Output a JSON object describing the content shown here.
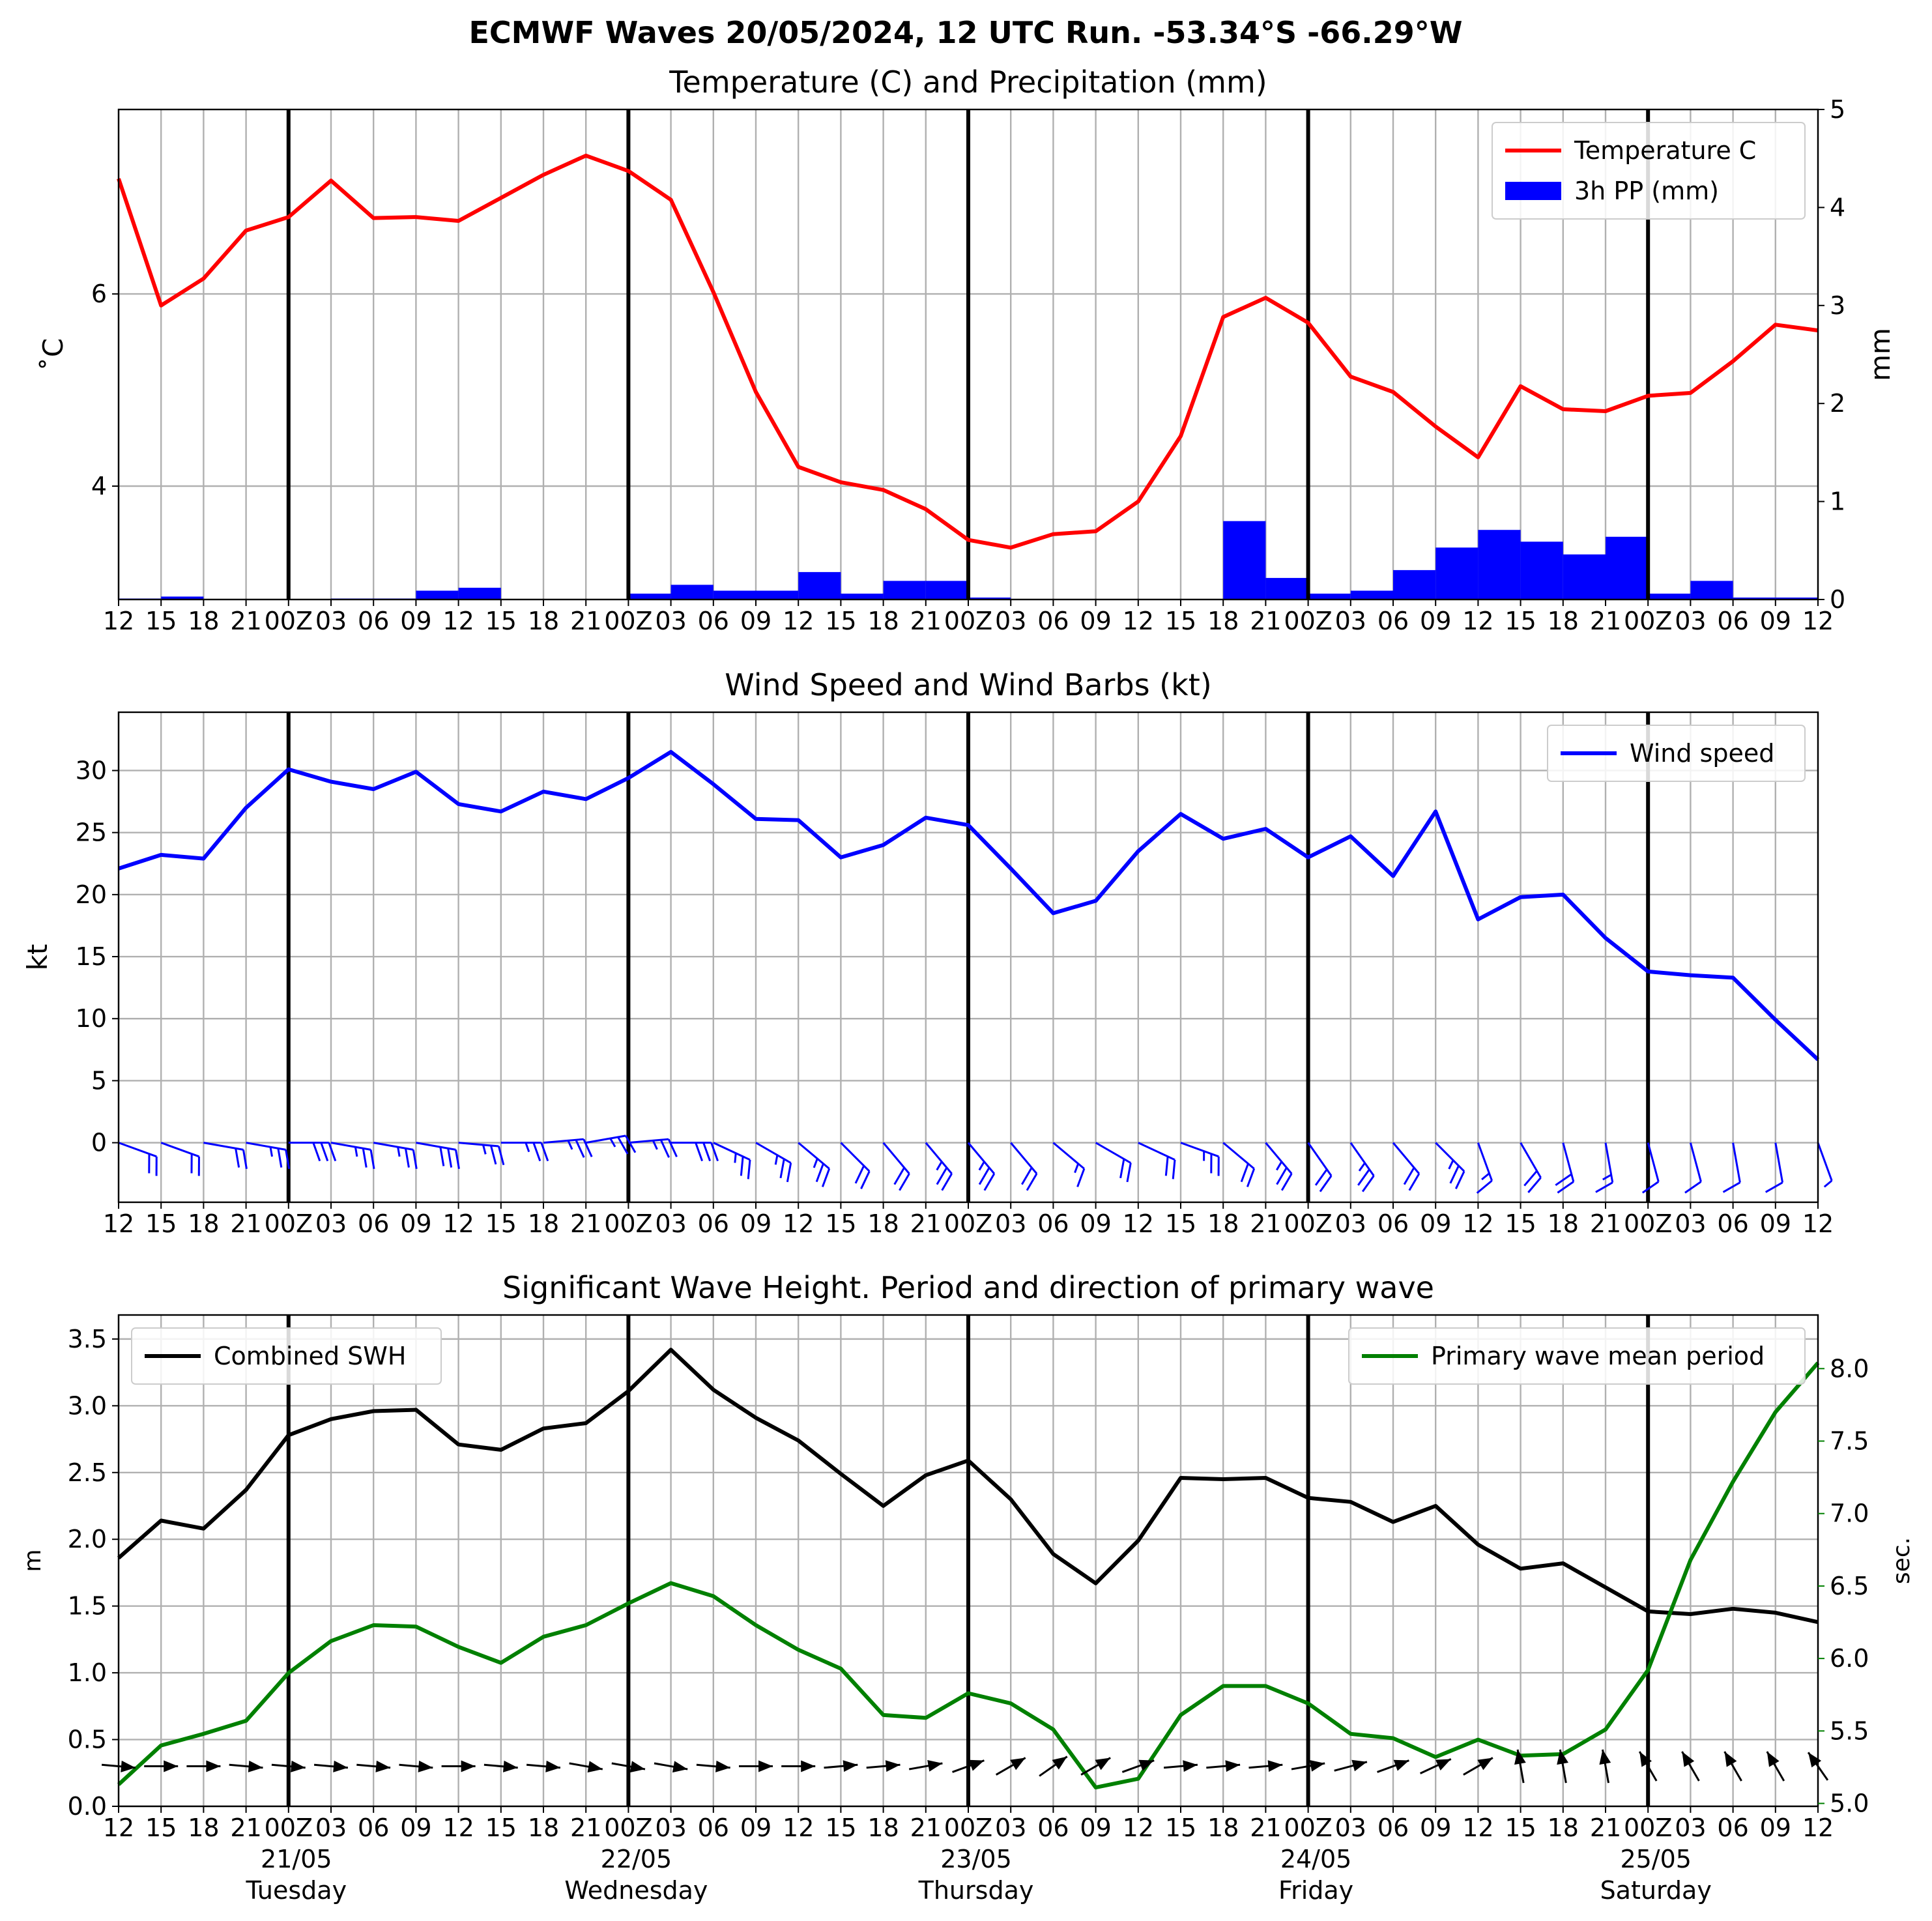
{
  "main_title": "ECMWF Waves 20/05/2024, 12 UTC Run. -53.34°S -66.29°W",
  "chart_data": [
    {
      "type": "line",
      "title": "Temperature (C) and Precipitation (mm)",
      "ylabel": "$^\\circ$C",
      "ylabel_display": "˚C",
      "y2label": "mm",
      "ylim": [
        2.82,
        7.92
      ],
      "y2lim": [
        0,
        5
      ],
      "yticks": [
        4,
        6
      ],
      "y2ticks": [
        0,
        1,
        2,
        3,
        4,
        5
      ],
      "xlim": [
        0,
        40
      ],
      "day_boundaries": [
        4,
        12,
        20,
        28,
        36
      ],
      "xtick_labels": [
        "12",
        "15",
        "18",
        "21",
        "00Z",
        "03",
        "06",
        "09",
        "12",
        "15",
        "18",
        "21",
        "00Z",
        "03",
        "06",
        "09",
        "12",
        "15",
        "18",
        "21",
        "00Z",
        "03",
        "06",
        "09",
        "12",
        "15",
        "18",
        "21",
        "00Z",
        "03",
        "06",
        "09",
        "12",
        "15",
        "18",
        "21",
        "00Z",
        "03",
        "06",
        "09",
        "12"
      ],
      "legend_position": "top-right",
      "grid": true,
      "series": [
        {
          "name": "Temperature C",
          "axis": "left",
          "color": "#ff0000",
          "x": [
            0,
            1,
            2,
            3,
            4,
            5,
            6,
            7,
            8,
            9,
            10,
            11,
            12,
            13,
            14,
            15,
            16,
            17,
            18,
            19,
            20,
            21,
            22,
            23,
            24,
            25,
            26,
            27,
            28,
            29,
            30,
            31,
            32,
            33,
            34,
            35,
            36,
            37,
            38,
            39,
            40
          ],
          "values": [
            7.2,
            5.88,
            6.16,
            6.66,
            6.8,
            7.18,
            6.79,
            6.8,
            6.76,
            7.0,
            7.24,
            7.44,
            7.28,
            6.98,
            6.02,
            4.98,
            4.2,
            4.04,
            3.96,
            3.76,
            3.44,
            3.36,
            3.5,
            3.53,
            3.84,
            4.52,
            5.76,
            5.96,
            5.7,
            5.14,
            4.98,
            4.62,
            4.3,
            5.04,
            4.8,
            4.78,
            4.94,
            4.97,
            5.3,
            5.68,
            5.62
          ]
        },
        {
          "name": "3h PP (mm)",
          "axis": "right",
          "type": "bar",
          "color": "#0000ff",
          "x": [
            0,
            1,
            2,
            3,
            4,
            5,
            6,
            7,
            8,
            9,
            10,
            11,
            12,
            13,
            14,
            15,
            16,
            17,
            18,
            19,
            20,
            21,
            22,
            23,
            24,
            25,
            26,
            27,
            28,
            29,
            30,
            31,
            32,
            33,
            34,
            35,
            36,
            37,
            38,
            39
          ],
          "values": [
            0.01,
            0.03,
            0,
            0,
            0,
            0.01,
            0.01,
            0.09,
            0.12,
            0,
            0,
            0,
            0.06,
            0.15,
            0.09,
            0.09,
            0.28,
            0.06,
            0.19,
            0.19,
            0.02,
            0,
            0,
            0,
            0,
            0,
            0.8,
            0.22,
            0.06,
            0.09,
            0.3,
            0.53,
            0.71,
            0.59,
            0.46,
            0.64,
            0.06,
            0.19,
            0.02,
            0.02
          ]
        }
      ]
    },
    {
      "type": "line",
      "title": "Wind Speed and Wind Barbs (kt)",
      "ylabel": "kt",
      "ylim": [
        -4.8,
        34.7
      ],
      "yticks": [
        0,
        5,
        10,
        15,
        20,
        25,
        30
      ],
      "xlim": [
        0,
        40
      ],
      "day_boundaries": [
        4,
        12,
        20,
        28,
        36
      ],
      "xtick_labels": [
        "12",
        "15",
        "18",
        "21",
        "00Z",
        "03",
        "06",
        "09",
        "12",
        "15",
        "18",
        "21",
        "00Z",
        "03",
        "06",
        "09",
        "12",
        "15",
        "18",
        "21",
        "00Z",
        "03",
        "06",
        "09",
        "12",
        "15",
        "18",
        "21",
        "00Z",
        "03",
        "06",
        "09",
        "12",
        "15",
        "18",
        "21",
        "00Z",
        "03",
        "06",
        "09",
        "12"
      ],
      "legend_position": "top-right",
      "grid": true,
      "series": [
        {
          "name": "Wind speed",
          "color": "#0000ff",
          "x": [
            0,
            1,
            2,
            3,
            4,
            5,
            6,
            7,
            8,
            9,
            10,
            11,
            12,
            13,
            14,
            15,
            16,
            17,
            18,
            19,
            20,
            21,
            22,
            23,
            24,
            25,
            26,
            27,
            28,
            29,
            30,
            31,
            32,
            33,
            34,
            35,
            36,
            37,
            38,
            39,
            40
          ],
          "values": [
            22.1,
            23.2,
            22.9,
            27.0,
            30.1,
            29.1,
            28.5,
            29.9,
            27.3,
            26.7,
            28.3,
            27.7,
            29.4,
            31.5,
            28.9,
            26.1,
            26.0,
            23.0,
            24.0,
            26.2,
            25.6,
            22.1,
            18.5,
            19.5,
            23.5,
            26.5,
            24.5,
            25.3,
            23.0,
            24.7,
            21.5,
            26.7,
            18.0,
            19.8,
            20.0,
            16.5,
            13.8,
            13.5,
            13.3,
            9.9,
            6.7
          ]
        }
      ],
      "wind_barbs": {
        "color": "#0000ff",
        "y": 0,
        "x": [
          0,
          1,
          2,
          3,
          4,
          5,
          6,
          7,
          8,
          9,
          10,
          11,
          12,
          13,
          14,
          15,
          16,
          17,
          18,
          19,
          20,
          21,
          22,
          23,
          24,
          25,
          26,
          27,
          28,
          29,
          30,
          31,
          32,
          33,
          34,
          35,
          36,
          37,
          38,
          39,
          40
        ],
        "direction_deg": [
          290,
          290,
          280,
          280,
          270,
          280,
          280,
          280,
          275,
          270,
          265,
          260,
          265,
          270,
          295,
          300,
          310,
          315,
          320,
          320,
          320,
          320,
          310,
          300,
          295,
          290,
          310,
          320,
          325,
          325,
          320,
          315,
          340,
          330,
          345,
          350,
          345,
          345,
          350,
          350,
          340
        ],
        "speed_kt": [
          22,
          23,
          23,
          27,
          30,
          29,
          28,
          30,
          27,
          27,
          28,
          28,
          29,
          31,
          29,
          26,
          26,
          23,
          24,
          26,
          26,
          22,
          18,
          20,
          24,
          26,
          24,
          25,
          23,
          25,
          21,
          27,
          18,
          20,
          20,
          16,
          14,
          13,
          13,
          10,
          7
        ]
      }
    },
    {
      "type": "line",
      "title": "Significant Wave Height. Period and direction of primary wave",
      "ylabel": "m",
      "y2label": "sec.",
      "ylim": [
        0,
        3.68
      ],
      "y2lim": [
        4.98,
        8.37
      ],
      "yticks": [
        0.0,
        0.5,
        1.0,
        1.5,
        2.0,
        2.5,
        3.0,
        3.5
      ],
      "y2ticks": [
        5.0,
        5.5,
        6.0,
        6.5,
        7.0,
        7.5,
        8.0
      ],
      "xlim": [
        0,
        40
      ],
      "day_boundaries": [
        4,
        12,
        20,
        28,
        36
      ],
      "xtick_labels": [
        "12",
        "15",
        "18",
        "21",
        "00Z",
        "03",
        "06",
        "09",
        "12",
        "15",
        "18",
        "21",
        "00Z",
        "03",
        "06",
        "09",
        "12",
        "15",
        "18",
        "21",
        "00Z",
        "03",
        "06",
        "09",
        "12",
        "15",
        "18",
        "21",
        "00Z",
        "03",
        "06",
        "09",
        "12",
        "15",
        "18",
        "21",
        "00Z",
        "03",
        "06",
        "09",
        "12"
      ],
      "date_labels": [
        {
          "x": 4,
          "date": "21/05",
          "day": "Tuesday"
        },
        {
          "x": 12,
          "date": "22/05",
          "day": "Wednesday"
        },
        {
          "x": 20,
          "date": "23/05",
          "day": "Thursday"
        },
        {
          "x": 28,
          "date": "24/05",
          "day": "Friday"
        },
        {
          "x": 36,
          "date": "25/05",
          "day": "Saturday"
        }
      ],
      "grid": true,
      "legend_positions": [
        "top-left",
        "top-right"
      ],
      "series": [
        {
          "name": "Combined SWH",
          "axis": "left",
          "color": "#000000",
          "x": [
            0,
            1,
            2,
            3,
            4,
            5,
            6,
            7,
            8,
            9,
            10,
            11,
            12,
            13,
            14,
            15,
            16,
            17,
            18,
            19,
            20,
            21,
            22,
            23,
            24,
            25,
            26,
            27,
            28,
            29,
            30,
            31,
            32,
            33,
            34,
            35,
            36,
            37,
            38,
            39,
            40
          ],
          "values": [
            1.86,
            2.14,
            2.08,
            2.37,
            2.78,
            2.9,
            2.96,
            2.97,
            2.71,
            2.67,
            2.83,
            2.87,
            3.11,
            3.42,
            3.12,
            2.91,
            2.74,
            2.49,
            2.25,
            2.48,
            2.59,
            2.3,
            1.89,
            1.67,
            1.99,
            2.46,
            2.45,
            2.46,
            2.31,
            2.28,
            2.13,
            2.25,
            1.96,
            1.78,
            1.82,
            1.64,
            1.46,
            1.44,
            1.48,
            1.45,
            1.38
          ]
        },
        {
          "name": "Primary wave mean period",
          "axis": "right",
          "color": "#008000",
          "x": [
            0,
            1,
            2,
            3,
            4,
            5,
            6,
            7,
            8,
            9,
            10,
            11,
            12,
            13,
            14,
            15,
            16,
            17,
            18,
            19,
            20,
            21,
            22,
            23,
            24,
            25,
            26,
            27,
            28,
            29,
            30,
            31,
            32,
            33,
            34,
            35,
            36,
            37,
            38,
            39,
            40
          ],
          "values": [
            5.13,
            5.4,
            5.48,
            5.57,
            5.9,
            6.12,
            6.23,
            6.22,
            6.08,
            5.97,
            6.15,
            6.23,
            6.38,
            6.52,
            6.43,
            6.23,
            6.06,
            5.93,
            5.61,
            5.59,
            5.76,
            5.69,
            5.51,
            5.11,
            5.17,
            5.61,
            5.81,
            5.81,
            5.69,
            5.48,
            5.45,
            5.32,
            5.44,
            5.33,
            5.34,
            5.51,
            5.92,
            6.68,
            7.22,
            7.7,
            8.04
          ]
        }
      ],
      "wave_direction_arrows": {
        "color": "#000000",
        "x": [
          0,
          1,
          2,
          3,
          4,
          5,
          6,
          7,
          8,
          9,
          10,
          11,
          12,
          13,
          14,
          15,
          16,
          17,
          18,
          19,
          20,
          21,
          22,
          23,
          24,
          25,
          26,
          27,
          28,
          29,
          30,
          31,
          32,
          33,
          34,
          35,
          36,
          37,
          38,
          39,
          40
        ],
        "toward_deg": [
          95,
          90,
          90,
          95,
          95,
          95,
          95,
          95,
          90,
          95,
          95,
          100,
          100,
          100,
          95,
          90,
          90,
          85,
          85,
          80,
          70,
          60,
          55,
          60,
          70,
          85,
          85,
          85,
          80,
          75,
          70,
          65,
          60,
          350,
          350,
          350,
          330,
          330,
          330,
          330,
          325
        ]
      }
    }
  ]
}
